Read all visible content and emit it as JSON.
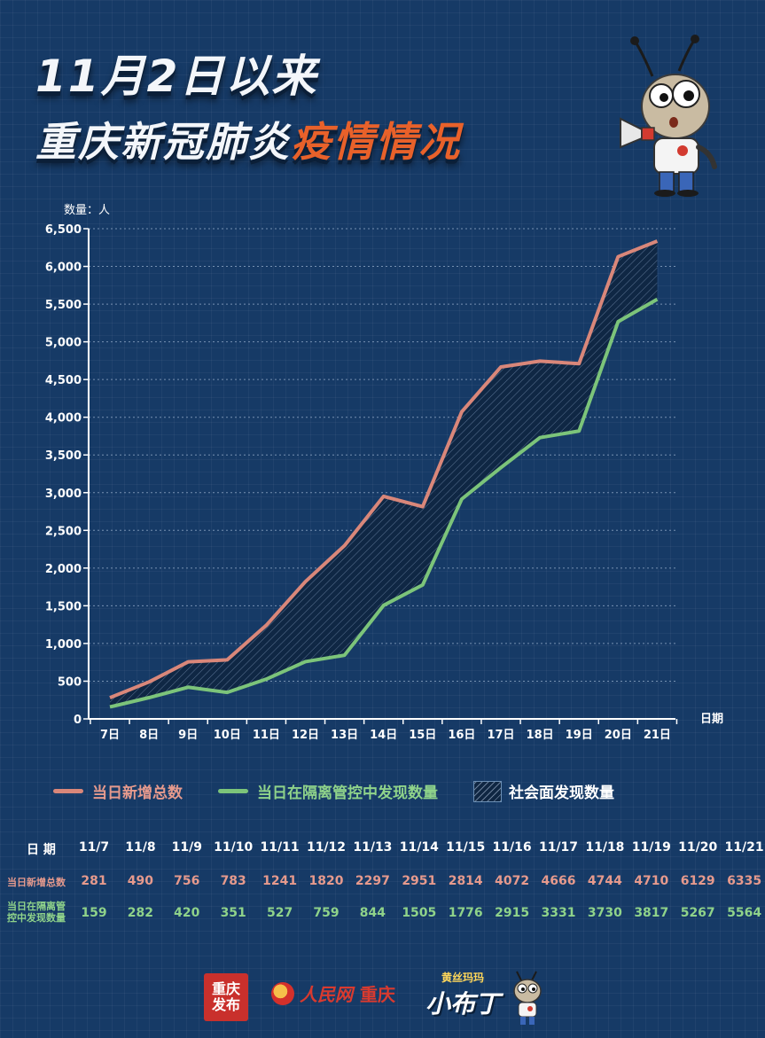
{
  "header": {
    "title_line1": "11月2日以来",
    "title_line2_white": "重庆新冠肺炎",
    "title_line2_accent": "疫情情况"
  },
  "chart_data": {
    "type": "area",
    "x": [
      "7日",
      "8日",
      "9日",
      "10日",
      "11日",
      "12日",
      "13日",
      "14日",
      "15日",
      "16日",
      "17日",
      "18日",
      "19日",
      "20日",
      "21日"
    ],
    "xlabel": "日期",
    "ylabel": "数量：人",
    "ylim": [
      0,
      6500
    ],
    "yticks": [
      0,
      500,
      1000,
      1500,
      2000,
      2500,
      3000,
      3500,
      4000,
      4500,
      5000,
      5500,
      6000,
      6500
    ],
    "ytick_labels": [
      "0",
      "500",
      "1,000",
      "1,500",
      "2,000",
      "2,500",
      "3,000",
      "3,500",
      "4,000",
      "4,500",
      "5,000",
      "5,500",
      "6,000",
      "6,500"
    ],
    "grid": true,
    "legend_position": "bottom",
    "series": [
      {
        "name": "当日新增总数",
        "color": "#d9877a",
        "values": [
          281,
          490,
          756,
          783,
          1241,
          1820,
          2297,
          2951,
          2814,
          4072,
          4666,
          4744,
          4710,
          6129,
          6335
        ]
      },
      {
        "name": "当日在隔离管控中发现数量",
        "color": "#7cc47a",
        "values": [
          159,
          282,
          420,
          351,
          527,
          759,
          844,
          1505,
          1776,
          2915,
          3331,
          3730,
          3817,
          5267,
          5564
        ]
      },
      {
        "name": "社会面发现数量",
        "fill": "hatched",
        "values": [
          122,
          208,
          336,
          432,
          714,
          1061,
          1453,
          1446,
          1038,
          1157,
          1335,
          1014,
          893,
          862,
          771
        ]
      }
    ]
  },
  "table": {
    "header_label": "日 期",
    "dates": [
      "11/7",
      "11/8",
      "11/9",
      "11/10",
      "11/11",
      "11/12",
      "11/13",
      "11/14",
      "11/15",
      "11/16",
      "11/17",
      "11/18",
      "11/19",
      "11/20",
      "11/21"
    ],
    "row1_label": "当日新增总数",
    "row1_values": [
      "281",
      "490",
      "756",
      "783",
      "1241",
      "1820",
      "2297",
      "2951",
      "2814",
      "4072",
      "4666",
      "4744",
      "4710",
      "6129",
      "6335"
    ],
    "row2_label_line1": "当日在隔离管",
    "row2_label_line2": "控中发现数量",
    "row2_values": [
      "159",
      "282",
      "420",
      "351",
      "527",
      "759",
      "844",
      "1505",
      "1776",
      "2915",
      "3331",
      "3730",
      "3817",
      "5267",
      "5564"
    ]
  },
  "colors": {
    "background": "#163a66",
    "total_line": "#d9877a",
    "quarantine_line": "#7cc47a",
    "title_accent": "#e8612a"
  },
  "footer": {
    "logo_cqfb_line1": "重庆",
    "logo_cqfb_line2": "发布",
    "logo_rmw": "人民网",
    "logo_rmw_city": "重庆",
    "logo_xbd_small": "黄丝玛玛",
    "logo_xbd_big": "小布丁"
  },
  "icons": [
    "mascot-megaphone-icon",
    "mascot-small-icon"
  ]
}
